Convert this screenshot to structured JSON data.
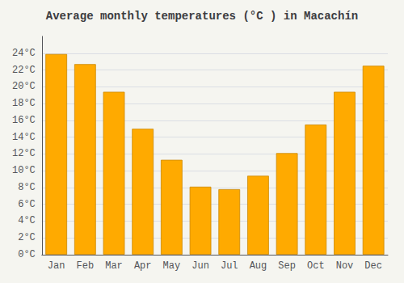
{
  "chart_data": {
    "type": "bar",
    "title": "Average monthly temperatures (°C ) in Macachín",
    "categories": [
      "Jan",
      "Feb",
      "Mar",
      "Apr",
      "May",
      "Jun",
      "Jul",
      "Aug",
      "Sep",
      "Oct",
      "Nov",
      "Dec"
    ],
    "values": [
      23.9,
      22.7,
      19.4,
      15.0,
      11.3,
      8.1,
      7.8,
      9.4,
      12.1,
      15.5,
      19.4,
      22.5
    ],
    "color": "#FFAA00",
    "ylim": [
      0,
      26
    ],
    "yticks": [
      {
        "value": 0,
        "label": "0°C"
      },
      {
        "value": 2,
        "label": "2°C"
      },
      {
        "value": 4,
        "label": "4°C"
      },
      {
        "value": 6,
        "label": "6°C"
      },
      {
        "value": 8,
        "label": "8°C"
      },
      {
        "value": 10,
        "label": "10°C"
      },
      {
        "value": 12,
        "label": "12°C"
      },
      {
        "value": 14,
        "label": "14°C"
      },
      {
        "value": 16,
        "label": "16°C"
      },
      {
        "value": 18,
        "label": "18°C"
      },
      {
        "value": 20,
        "label": "20°C"
      },
      {
        "value": 22,
        "label": "22°C"
      },
      {
        "value": 24,
        "label": "24°C"
      }
    ],
    "grid": true
  }
}
